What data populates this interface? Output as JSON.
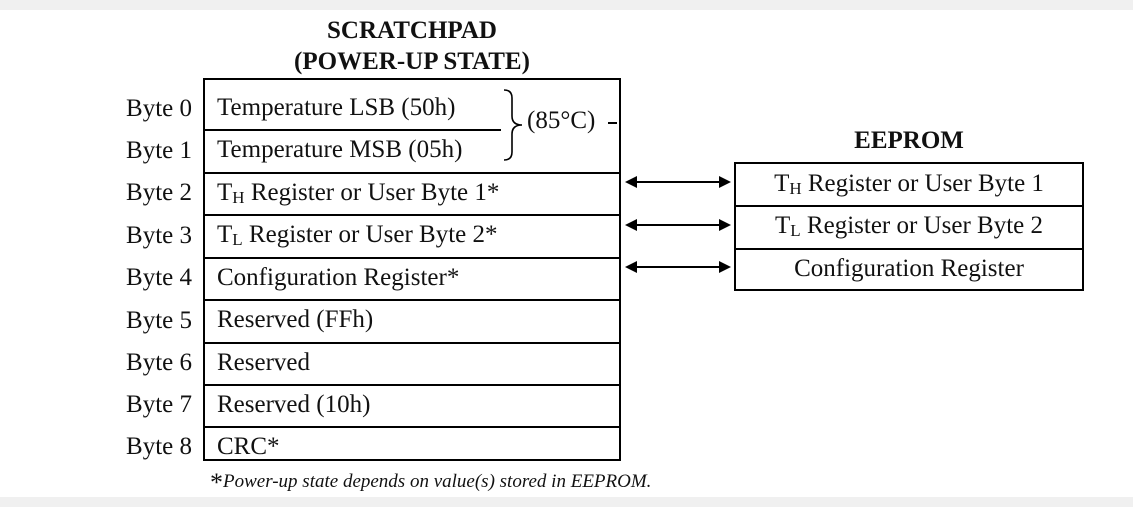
{
  "scratchpad": {
    "title_line1": "SCRATCHPAD",
    "title_line2": "(POWER-UP STATE)",
    "bytes": [
      {
        "label": "Byte 0",
        "text": "Temperature LSB (50h)"
      },
      {
        "label": "Byte 1",
        "text": "Temperature MSB (05h)"
      },
      {
        "label": "Byte 2",
        "main": "T",
        "sub": "H",
        "rest": " Register or User Byte 1*"
      },
      {
        "label": "Byte 3",
        "main": "T",
        "sub": "L",
        "rest": " Register or User Byte 2*"
      },
      {
        "label": "Byte 4",
        "text": "Configuration Register*"
      },
      {
        "label": "Byte 5",
        "text": "Reserved (FFh)"
      },
      {
        "label": "Byte 6",
        "text": "Reserved"
      },
      {
        "label": "Byte 7",
        "text": "Reserved (10h)"
      },
      {
        "label": "Byte 8",
        "text": "CRC*"
      }
    ],
    "temperature_annotation": "(85°C)"
  },
  "eeprom": {
    "title": "EEPROM",
    "rows": [
      {
        "main": "T",
        "sub": "H",
        "rest": " Register or User Byte 1"
      },
      {
        "main": "T",
        "sub": "L",
        "rest": " Register or User Byte 2"
      },
      {
        "text": "Configuration Register"
      }
    ]
  },
  "footnote": {
    "star": "*",
    "text": "Power-up state depends on value(s) stored in EEPROM."
  }
}
